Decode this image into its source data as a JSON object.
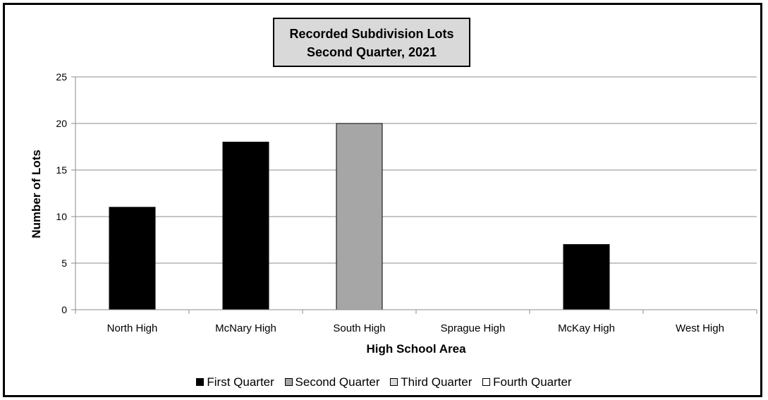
{
  "chart_data": {
    "type": "bar",
    "title": "Recorded Subdivision Lots",
    "subtitle": "Second Quarter, 2021",
    "xlabel": "High School Area",
    "ylabel": "Number of Lots",
    "ylim": [
      0,
      25
    ],
    "yticks": [
      "0",
      "5",
      "10",
      "15",
      "20",
      "25"
    ],
    "grid": true,
    "legend_position": "bottom",
    "categories": [
      "North High",
      "McNary High",
      "South High",
      "Sprague High",
      "McKay High",
      "West High"
    ],
    "series": [
      {
        "name": "First Quarter",
        "color": "#000000",
        "values": [
          11,
          18,
          0,
          0,
          7,
          0
        ]
      },
      {
        "name": "Second Quarter",
        "color": "#a6a6a6",
        "values": [
          0,
          0,
          20,
          0,
          0,
          0
        ]
      },
      {
        "name": "Third Quarter",
        "color": "#d9d9d9",
        "values": [
          0,
          0,
          0,
          0,
          0,
          0
        ]
      },
      {
        "name": "Fourth Quarter",
        "color": "#ffffff",
        "values": [
          0,
          0,
          0,
          0,
          0,
          0
        ]
      }
    ]
  }
}
